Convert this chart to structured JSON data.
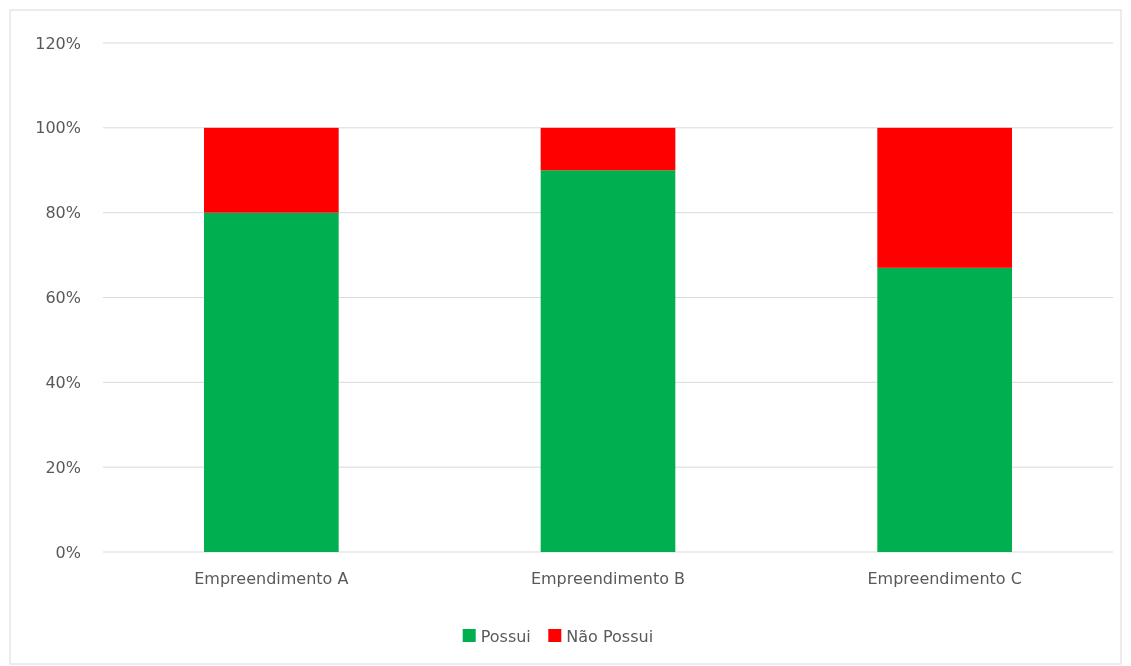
{
  "chart_data": {
    "type": "bar",
    "stacked": true,
    "categories": [
      "Empreendimento A",
      "Empreendimento B",
      "Empreendimento C"
    ],
    "series": [
      {
        "name": "Possui",
        "color": "#00b050",
        "values": [
          80,
          90,
          67
        ]
      },
      {
        "name": "Não Possui",
        "color": "#ff0000",
        "values": [
          20,
          10,
          33
        ]
      }
    ],
    "ylim": [
      0,
      120
    ],
    "yticks": [
      {
        "value": 0,
        "label": "0%"
      },
      {
        "value": 20,
        "label": "20%"
      },
      {
        "value": 40,
        "label": "40%"
      },
      {
        "value": 60,
        "label": "60%"
      },
      {
        "value": 80,
        "label": "80%"
      },
      {
        "value": 100,
        "label": "100%"
      },
      {
        "value": 120,
        "label": "120%"
      }
    ],
    "grid": "y",
    "legend": "bottom"
  }
}
